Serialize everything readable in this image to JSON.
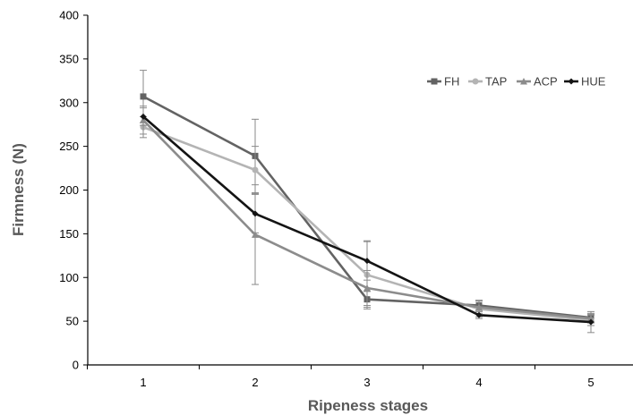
{
  "chart_data": {
    "type": "line",
    "xlabel": "Ripeness stages",
    "ylabel": "Firmness (N)",
    "x": [
      1,
      2,
      3,
      4,
      5
    ],
    "xticks": [
      "1",
      "2",
      "3",
      "4",
      "5"
    ],
    "ylim": [
      0,
      400
    ],
    "yticks": [
      0,
      50,
      100,
      150,
      200,
      250,
      300,
      350,
      400
    ],
    "grid": false,
    "legend_position": "top-right",
    "series": [
      {
        "name": "FH",
        "values": [
          307,
          239,
          75,
          68,
          54
        ],
        "errors": [
          30,
          42,
          9,
          6,
          5
        ],
        "color": "#636363",
        "marker": "square"
      },
      {
        "name": "TAP",
        "values": [
          272,
          223,
          103,
          64,
          51
        ],
        "errors": [
          12,
          27,
          39,
          9,
          6
        ],
        "color": "#b4b4b4",
        "marker": "circle"
      },
      {
        "name": "ACP",
        "values": [
          280,
          149,
          88,
          66,
          53
        ],
        "errors": [
          16,
          57,
          20,
          7,
          5
        ],
        "color": "#8c8c8c",
        "marker": "triangle"
      },
      {
        "name": "HUE",
        "values": [
          284,
          173,
          119,
          57,
          49
        ],
        "errors": [
          10,
          22,
          22,
          4,
          12
        ],
        "color": "#141414",
        "marker": "diamond"
      }
    ]
  }
}
